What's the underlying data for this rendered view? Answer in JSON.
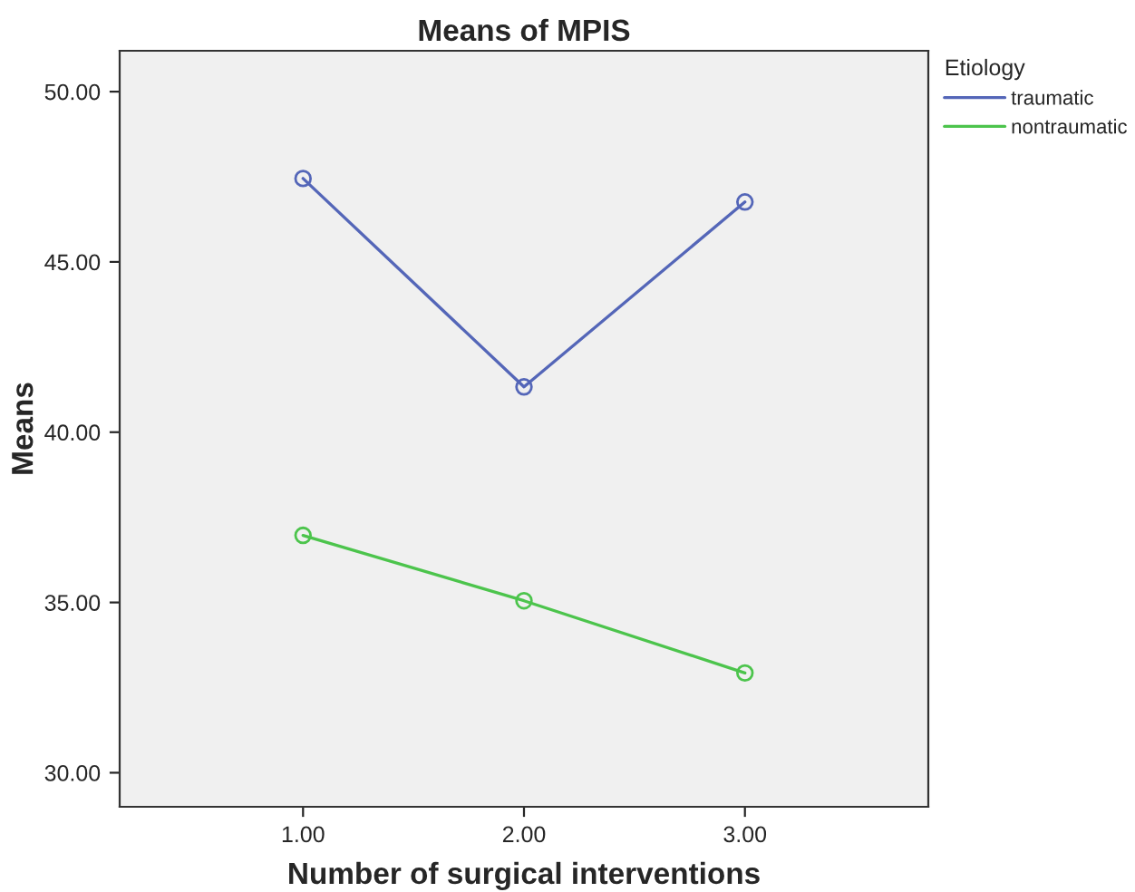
{
  "chart_data": {
    "type": "line",
    "title": "Means of MPIS",
    "xlabel": "Number of surgical interventions",
    "ylabel": "Means",
    "legend_title": "Etiology",
    "categories": [
      "1.00",
      "2.00",
      "3.00"
    ],
    "series": [
      {
        "name": "traumatic",
        "color": "#5466b8",
        "values": [
          47.45,
          41.33,
          46.76
        ]
      },
      {
        "name": "nontraumatic",
        "color": "#4cc44c",
        "values": [
          36.97,
          35.05,
          32.93
        ]
      }
    ],
    "ylim": [
      29,
      51.2
    ],
    "yticks": [
      {
        "value": 30,
        "label": "30.00"
      },
      {
        "value": 35,
        "label": "35.00"
      },
      {
        "value": 40,
        "label": "40.00"
      },
      {
        "value": 45,
        "label": "45.00"
      },
      {
        "value": 50,
        "label": "50.00"
      }
    ],
    "grid": false,
    "legend": "right",
    "marker": "circle",
    "line_style": "solid"
  }
}
